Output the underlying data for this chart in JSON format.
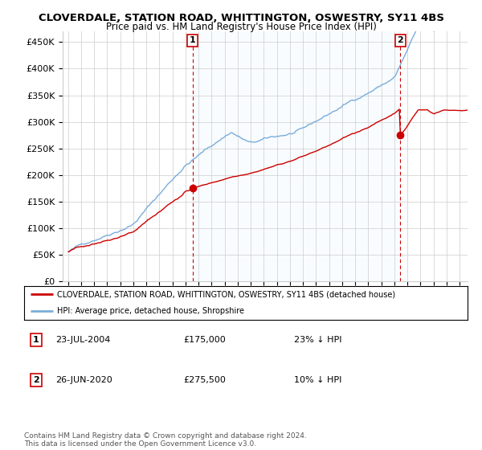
{
  "title": "CLOVERDALE, STATION ROAD, WHITTINGTON, OSWESTRY, SY11 4BS",
  "subtitle": "Price paid vs. HM Land Registry's House Price Index (HPI)",
  "ylim": [
    0,
    470000
  ],
  "yticks": [
    0,
    50000,
    100000,
    150000,
    200000,
    250000,
    300000,
    350000,
    400000,
    450000
  ],
  "ytick_labels": [
    "£0",
    "£50K",
    "£100K",
    "£150K",
    "£200K",
    "£250K",
    "£300K",
    "£350K",
    "£400K",
    "£450K"
  ],
  "sale1_year": 2004,
  "sale1_month": 7,
  "sale1_price": 175000,
  "sale2_year": 2020,
  "sale2_month": 6,
  "sale2_price": 275500,
  "sale1_date": "23-JUL-2004",
  "sale1_pct": "23% ↓ HPI",
  "sale2_date": "26-JUN-2020",
  "sale2_pct": "10% ↓ HPI",
  "legend_line1": "CLOVERDALE, STATION ROAD, WHITTINGTON, OSWESTRY, SY11 4BS (detached house)",
  "legend_line2": "HPI: Average price, detached house, Shropshire",
  "footnote": "Contains HM Land Registry data © Crown copyright and database right 2024.\nThis data is licensed under the Open Government Licence v3.0.",
  "line_color_red": "#cc0000",
  "line_color_blue": "#7aadda",
  "shade_color": "#ddeeff",
  "start_year": 1995,
  "end_year": 2025
}
